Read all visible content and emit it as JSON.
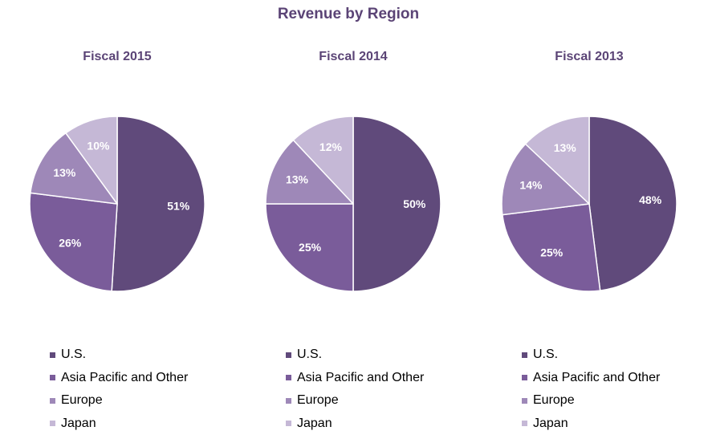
{
  "title": "Revenue by Region",
  "colors": {
    "title": "#5b4476",
    "slice_border": "#ffffff",
    "label_text": "#ffffff"
  },
  "chart_data": [
    {
      "type": "pie",
      "title": "Fiscal 2015",
      "categories": [
        "U.S.",
        "Asia Pacific and Other",
        "Europe",
        "Japan"
      ],
      "values": [
        51,
        26,
        13,
        10
      ],
      "labels": [
        "51%",
        "26%",
        "13%",
        "10%"
      ],
      "colors": [
        "#604a7b",
        "#7a5c9a",
        "#9e88b8",
        "#c5b8d6"
      ],
      "start_angle": "12 o'clock",
      "direction": "clockwise",
      "legend_position": "bottom"
    },
    {
      "type": "pie",
      "title": "Fiscal 2014",
      "categories": [
        "U.S.",
        "Asia Pacific and Other",
        "Europe",
        "Japan"
      ],
      "values": [
        50,
        25,
        13,
        12
      ],
      "labels": [
        "50%",
        "25%",
        "13%",
        "12%"
      ],
      "colors": [
        "#604a7b",
        "#7a5c9a",
        "#9e88b8",
        "#c5b8d6"
      ],
      "start_angle": "12 o'clock",
      "direction": "clockwise",
      "legend_position": "bottom"
    },
    {
      "type": "pie",
      "title": "Fiscal 2013",
      "categories": [
        "U.S.",
        "Asia Pacific and Other",
        "Europe",
        "Japan"
      ],
      "values": [
        48,
        25,
        14,
        13
      ],
      "labels": [
        "48%",
        "25%",
        "14%",
        "13%"
      ],
      "colors": [
        "#604a7b",
        "#7a5c9a",
        "#9e88b8",
        "#c5b8d6"
      ],
      "start_angle": "12 o'clock",
      "direction": "clockwise",
      "legend_position": "bottom"
    }
  ]
}
